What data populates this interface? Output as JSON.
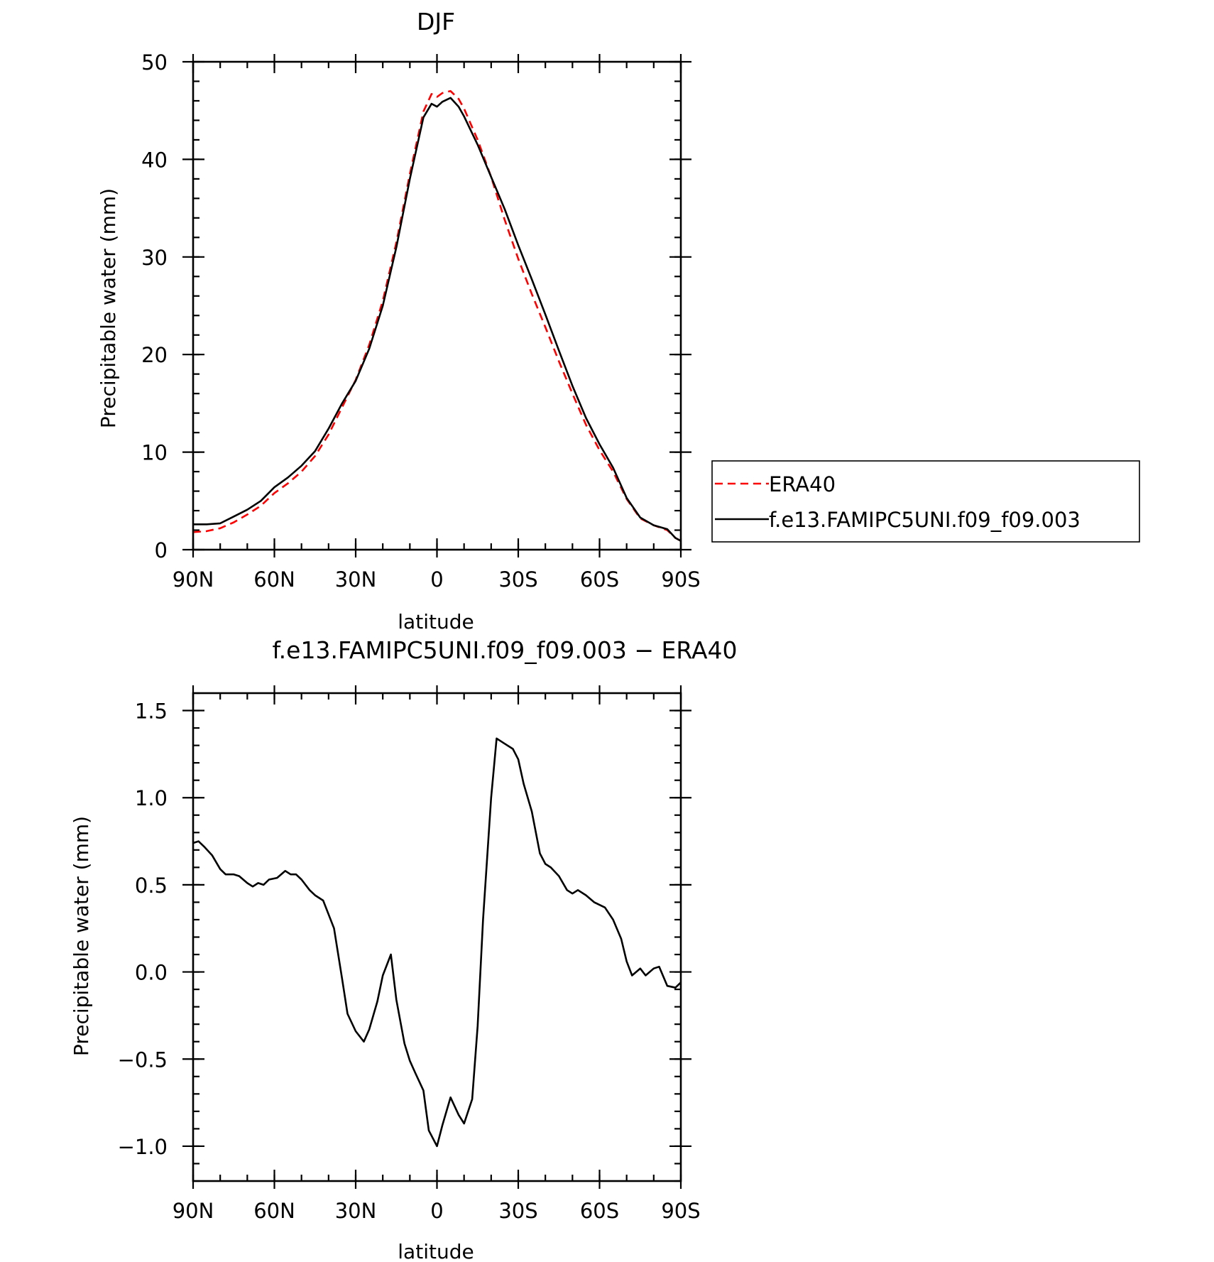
{
  "chart_data": [
    {
      "type": "line",
      "title": "DJF",
      "xlabel": "latitude",
      "ylabel": "Precipitable water (mm)",
      "xlim": [
        90,
        -90
      ],
      "ylim": [
        0,
        50
      ],
      "x_ticks": [
        {
          "value": 90,
          "label": "90N"
        },
        {
          "value": 60,
          "label": "60N"
        },
        {
          "value": 30,
          "label": "30N"
        },
        {
          "value": 0,
          "label": "0"
        },
        {
          "value": -30,
          "label": "30S"
        },
        {
          "value": -60,
          "label": "60S"
        },
        {
          "value": -90,
          "label": "90S"
        }
      ],
      "y_ticks": [
        {
          "value": 0,
          "label": "0"
        },
        {
          "value": 10,
          "label": "10"
        },
        {
          "value": 20,
          "label": "20"
        },
        {
          "value": 30,
          "label": "30"
        },
        {
          "value": 40,
          "label": "40"
        },
        {
          "value": 50,
          "label": "50"
        }
      ],
      "legend": {
        "placement": "right"
      },
      "series": [
        {
          "name": "ERA40",
          "color": "#ff0000",
          "dash": "dashed",
          "x": [
            90,
            85,
            80,
            75,
            70,
            65,
            60,
            55,
            50,
            45,
            40,
            35,
            30,
            25,
            20,
            15,
            10,
            5,
            2,
            0,
            -2,
            -5,
            -8,
            -10,
            -15,
            -20,
            -25,
            -30,
            -35,
            -40,
            -45,
            -50,
            -55,
            -60,
            -65,
            -70,
            -75,
            -80,
            -85,
            -88,
            -90
          ],
          "values": [
            1.8,
            1.9,
            2.2,
            2.8,
            3.6,
            4.5,
            5.8,
            6.8,
            8.0,
            9.6,
            11.8,
            14.6,
            17.4,
            21.0,
            25.5,
            31.5,
            38.5,
            44.9,
            46.7,
            46.4,
            46.8,
            47.0,
            46.2,
            45.2,
            42.0,
            38.2,
            33.8,
            29.8,
            26.2,
            22.8,
            19.3,
            16.0,
            12.8,
            10.2,
            8.0,
            5.2,
            3.2,
            2.5,
            2.0,
            1.2,
            0.9
          ]
        },
        {
          "name": "f.e13.FAMIPC5UNI.f09_f09.003",
          "color": "#000000",
          "dash": "solid",
          "x": [
            90,
            85,
            80,
            75,
            70,
            65,
            60,
            55,
            50,
            45,
            40,
            35,
            30,
            25,
            20,
            15,
            10,
            5,
            2,
            0,
            -2,
            -5,
            -8,
            -10,
            -15,
            -20,
            -25,
            -30,
            -35,
            -40,
            -45,
            -50,
            -55,
            -60,
            -65,
            -70,
            -75,
            -80,
            -85,
            -88,
            -90
          ],
          "values": [
            2.6,
            2.6,
            2.7,
            3.4,
            4.1,
            5.0,
            6.4,
            7.4,
            8.6,
            10.1,
            12.4,
            15.0,
            17.3,
            20.6,
            25.0,
            31.0,
            38.0,
            44.3,
            45.7,
            45.4,
            45.9,
            46.3,
            45.4,
            44.4,
            41.5,
            38.2,
            34.9,
            31.2,
            27.7,
            24.1,
            20.4,
            16.8,
            13.5,
            10.8,
            8.4,
            5.3,
            3.3,
            2.5,
            2.1,
            1.2,
            0.9
          ]
        }
      ]
    },
    {
      "type": "line",
      "title": "f.e13.FAMIPC5UNI.f09_f09.003 − ERA40",
      "xlabel": "latitude",
      "ylabel": "Precipitable water (mm)",
      "xlim": [
        90,
        -90
      ],
      "ylim": [
        -1.2,
        1.6
      ],
      "x_ticks": [
        {
          "value": 90,
          "label": "90N"
        },
        {
          "value": 60,
          "label": "60N"
        },
        {
          "value": 30,
          "label": "30N"
        },
        {
          "value": 0,
          "label": "0"
        },
        {
          "value": -30,
          "label": "30S"
        },
        {
          "value": -60,
          "label": "60S"
        },
        {
          "value": -90,
          "label": "90S"
        }
      ],
      "y_ticks": [
        {
          "value": -1.0,
          "label": "−1.0"
        },
        {
          "value": -0.5,
          "label": "−0.5"
        },
        {
          "value": 0.0,
          "label": "0.0"
        },
        {
          "value": 0.5,
          "label": "0.5"
        },
        {
          "value": 1.0,
          "label": "1.0"
        },
        {
          "value": 1.5,
          "label": "1.5"
        }
      ],
      "series": [
        {
          "color": "#000000",
          "dash": "solid",
          "x": [
            90,
            88,
            86,
            83,
            80,
            78,
            75,
            73,
            70,
            68,
            66,
            64,
            62,
            59,
            56,
            54,
            52,
            50,
            47,
            45,
            42,
            38,
            35,
            33,
            30,
            27,
            25,
            22,
            20,
            17,
            15,
            12,
            10,
            8,
            5,
            3,
            0,
            -2,
            -5,
            -8,
            -10,
            -13,
            -15,
            -17,
            -20,
            -22,
            -25,
            -28,
            -30,
            -32,
            -35,
            -38,
            -40,
            -42,
            -45,
            -48,
            -50,
            -52,
            -55,
            -58,
            -62,
            -65,
            -68,
            -70,
            -72,
            -75,
            -77,
            -80,
            -82,
            -85,
            -88,
            -90
          ],
          "values": [
            0.74,
            0.75,
            0.72,
            0.67,
            0.59,
            0.56,
            0.56,
            0.55,
            0.51,
            0.49,
            0.51,
            0.5,
            0.53,
            0.54,
            0.58,
            0.56,
            0.56,
            0.53,
            0.47,
            0.44,
            0.41,
            0.25,
            -0.04,
            -0.24,
            -0.34,
            -0.4,
            -0.33,
            -0.17,
            -0.02,
            0.1,
            -0.16,
            -0.41,
            -0.51,
            -0.58,
            -0.68,
            -0.91,
            -1.0,
            -0.88,
            -0.72,
            -0.82,
            -0.87,
            -0.73,
            -0.31,
            0.3,
            1.0,
            1.34,
            1.31,
            1.28,
            1.22,
            1.08,
            0.92,
            0.68,
            0.62,
            0.6,
            0.55,
            0.47,
            0.45,
            0.47,
            0.44,
            0.4,
            0.37,
            0.3,
            0.19,
            0.06,
            -0.02,
            0.02,
            -0.02,
            0.02,
            0.03,
            -0.08,
            -0.09,
            -0.06
          ]
        }
      ]
    }
  ]
}
